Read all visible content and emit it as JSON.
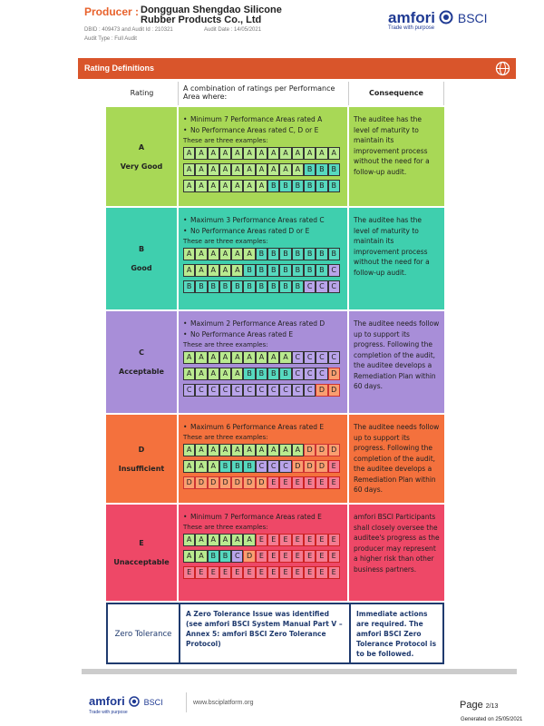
{
  "header": {
    "producer_label": "Producer :",
    "producer_name": [
      "Dongguan Shengdao Silicone",
      "Rubber Products Co., Ltd"
    ],
    "ids": "DBID : 409473 and Audit Id : 210321",
    "audit_date": "Audit Date : 14/05/2021",
    "audit_type": "Audit Type : Full Audit",
    "logo": {
      "brand": "amfori",
      "program": "BSCI",
      "tagline": "Trade with purpose"
    }
  },
  "section": {
    "title": "Rating Definitions"
  },
  "table": {
    "headers": [
      "Rating",
      "A combination of ratings per Performance Area where:",
      "Consequence"
    ],
    "rows": [
      {
        "letter": "A",
        "label": "Very Good",
        "criteria": [
          "Minimum 7 Performance Areas rated A",
          "No Performance Areas rated C, D or E"
        ],
        "examples_intro": "These are three examples:",
        "examples": [
          [
            "A",
            "A",
            "A",
            "A",
            "A",
            "A",
            "A",
            "A",
            "A",
            "A",
            "A",
            "A",
            "A"
          ],
          [
            "A",
            "A",
            "A",
            "A",
            "A",
            "A",
            "A",
            "A",
            "A",
            "A",
            "B",
            "B",
            "B"
          ],
          [
            "A",
            "A",
            "A",
            "A",
            "A",
            "A",
            "A",
            "B",
            "B",
            "B",
            "B",
            "B",
            "B"
          ]
        ],
        "consequence": "The auditee has the level of maturity to maintain its improvement process without the need for a follow-up audit."
      },
      {
        "letter": "B",
        "label": "Good",
        "criteria": [
          "Maximum 3 Performance Areas rated C",
          "No Performance Areas rated D or E"
        ],
        "examples_intro": "These are three examples:",
        "examples": [
          [
            "A",
            "A",
            "A",
            "A",
            "A",
            "A",
            "B",
            "B",
            "B",
            "B",
            "B",
            "B",
            "B"
          ],
          [
            "A",
            "A",
            "A",
            "A",
            "A",
            "B",
            "B",
            "B",
            "B",
            "B",
            "B",
            "B",
            "C"
          ],
          [
            "B",
            "B",
            "B",
            "B",
            "B",
            "B",
            "B",
            "B",
            "B",
            "B",
            "C",
            "C",
            "C"
          ]
        ],
        "consequence": "The auditee has the level of maturity to maintain its improvement process without the need for a follow-up audit."
      },
      {
        "letter": "C",
        "label": "Acceptable",
        "criteria": [
          "Maximum 2 Performance Areas rated D",
          "No Performance Areas rated E"
        ],
        "examples_intro": "These are three examples:",
        "examples": [
          [
            "A",
            "A",
            "A",
            "A",
            "A",
            "A",
            "A",
            "A",
            "A",
            "C",
            "C",
            "C",
            "C"
          ],
          [
            "A",
            "A",
            "A",
            "A",
            "A",
            "B",
            "B",
            "B",
            "B",
            "C",
            "C",
            "C",
            "D"
          ],
          [
            "C",
            "C",
            "C",
            "C",
            "C",
            "C",
            "C",
            "C",
            "C",
            "C",
            "C",
            "D",
            "D"
          ]
        ],
        "consequence": "The auditee needs follow up to support its progress. Following the completion of the audit, the auditee develops a Remediation Plan within 60 days."
      },
      {
        "letter": "D",
        "label": "Insufficient",
        "criteria": [
          "Maximum 6 Performance Areas rated E"
        ],
        "examples_intro": "These are three examples:",
        "examples": [
          [
            "A",
            "A",
            "A",
            "A",
            "A",
            "A",
            "A",
            "A",
            "A",
            "A",
            "D",
            "D",
            "D"
          ],
          [
            "A",
            "A",
            "A",
            "B",
            "B",
            "B",
            "C",
            "C",
            "C",
            "D",
            "D",
            "D",
            "E"
          ],
          [
            "D",
            "D",
            "D",
            "D",
            "D",
            "D",
            "D",
            "E",
            "E",
            "E",
            "E",
            "E",
            "E"
          ]
        ],
        "consequence": "The auditee needs follow up to support its progress. Following the completion of the audit, the auditee develops a Remediation Plan within 60 days."
      },
      {
        "letter": "E",
        "label": "Unacceptable",
        "criteria": [
          "Minimum 7 Performance Areas rated E"
        ],
        "examples_intro": "These are three examples:",
        "examples": [
          [
            "A",
            "A",
            "A",
            "A",
            "A",
            "A",
            "E",
            "E",
            "E",
            "E",
            "E",
            "E",
            "E"
          ],
          [
            "A",
            "A",
            "B",
            "B",
            "C",
            "D",
            "E",
            "E",
            "E",
            "E",
            "E",
            "E",
            "E"
          ],
          [
            "E",
            "E",
            "E",
            "E",
            "E",
            "E",
            "E",
            "E",
            "E",
            "E",
            "E",
            "E",
            "E"
          ]
        ],
        "consequence": "amfori BSCI Participants shall closely oversee the auditee's progress as the producer may represent a higher risk than other business partners."
      }
    ],
    "zero_tolerance": {
      "label": "Zero Tolerance",
      "description": "A Zero Tolerance Issue was identified (see amfori BSCI System Manual Part V – Annex 5: amfori BSCI Zero Tolerance Protocol)",
      "consequence": "Immediate actions are required. The amfori BSCI Zero Tolerance Protocol is to be followed."
    }
  },
  "footer": {
    "logo": {
      "brand": "amfori",
      "program": "BSCI",
      "tagline": "Trade with purpose"
    },
    "website": "www.bsciplatform.org",
    "page_word": "Page",
    "page_number": "2/13",
    "generated": "Generated on 25/05/2021"
  }
}
